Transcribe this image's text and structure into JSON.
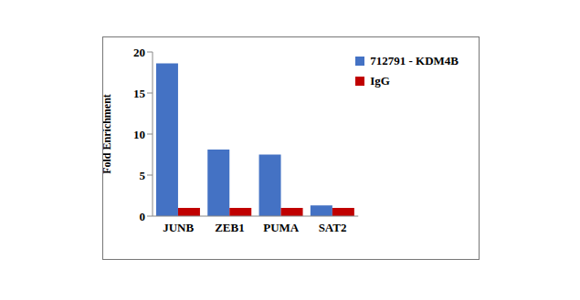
{
  "chart_data": {
    "type": "bar",
    "categories": [
      "JUNB",
      "ZEB1",
      "PUMA",
      "SAT2"
    ],
    "series": [
      {
        "name": "712791 - KDM4B",
        "color": "#4472c4",
        "values": [
          18.6,
          8.1,
          7.5,
          1.3
        ]
      },
      {
        "name": "IgG",
        "color": "#c00000",
        "values": [
          1,
          1,
          1,
          1
        ]
      }
    ],
    "ylabel": "Fold Enrichment",
    "ylim": [
      0,
      20
    ],
    "yticks": [
      0,
      5,
      10,
      15,
      20
    ],
    "grid": false,
    "legend": "upper right"
  }
}
